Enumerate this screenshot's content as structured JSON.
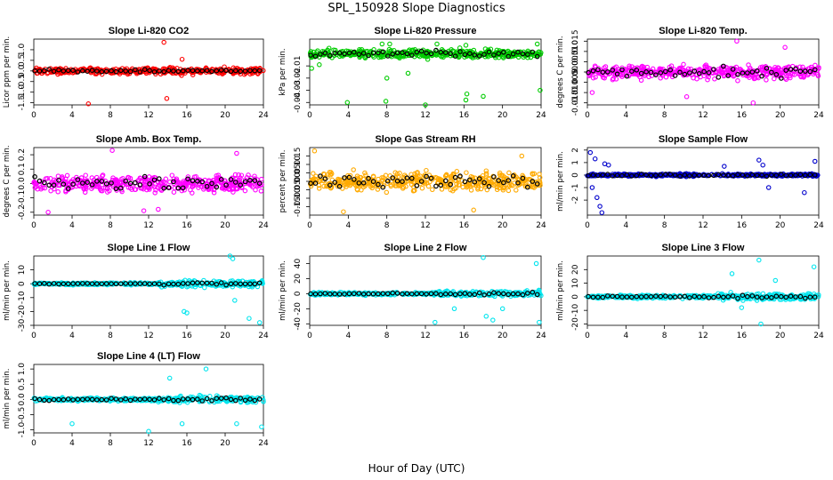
{
  "figure": {
    "title": "SPL_150928  Slope Diagnostics",
    "xlabel": "Hour of Day (UTC)"
  },
  "chart_data": [
    {
      "type": "scatter",
      "title": "Slope Li-820 CO2",
      "ylabel": "Licor ppm per min.",
      "color": "#ff0000",
      "xlim": [
        0,
        24
      ],
      "xticks": [
        0,
        4,
        8,
        12,
        16,
        20,
        24
      ],
      "ylim": [
        -1.6,
        1.5
      ],
      "yticks": [
        -1.5,
        -1.0,
        -0.5,
        0.0,
        0.5,
        1.0
      ],
      "ytick_labels": [
        "-1.5",
        "-1.0",
        "-0.5",
        "0.0",
        "0.5",
        "1.0"
      ],
      "spread": 0.18,
      "black_spread": 0.07,
      "outliers": [
        [
          13.6,
          1.35
        ],
        [
          13.9,
          -1.3
        ],
        [
          5.7,
          -1.55
        ],
        [
          15.5,
          0.55
        ]
      ]
    },
    {
      "type": "scatter",
      "title": "Slope Li-820 Pressure",
      "ylabel": "kPa per min.",
      "color": "#00cc00",
      "xlim": [
        0,
        24
      ],
      "xticks": [
        0,
        4,
        8,
        12,
        16,
        20,
        24
      ],
      "ylim": [
        -0.042,
        0.012
      ],
      "yticks": [
        -0.04,
        -0.03,
        -0.02,
        -0.01
      ],
      "ytick_labels": [
        "-0.04",
        "-0.03",
        "-0.02",
        "-0.01"
      ],
      "center": 0.0,
      "spread": 0.004,
      "black_spread": 0.003,
      "outliers": [
        [
          7.5,
          0.008
        ],
        [
          8.3,
          0.008
        ],
        [
          13.2,
          0.008
        ],
        [
          16.2,
          0.007
        ],
        [
          23.6,
          0.008
        ],
        [
          0.2,
          -0.012
        ],
        [
          1.0,
          -0.009
        ],
        [
          3.9,
          -0.04
        ],
        [
          7.9,
          -0.039
        ],
        [
          12.0,
          -0.042
        ],
        [
          16.2,
          -0.038
        ],
        [
          16.3,
          -0.033
        ],
        [
          18.0,
          -0.035
        ],
        [
          23.9,
          -0.03
        ],
        [
          8.0,
          -0.02
        ],
        [
          10.2,
          -0.016
        ]
      ]
    },
    {
      "type": "scatter",
      "title": "Slope Li-820 Temp.",
      "ylabel": "degrees C per min.",
      "color": "#ff00ff",
      "xlim": [
        0,
        24
      ],
      "xticks": [
        0,
        4,
        8,
        12,
        16,
        20,
        24
      ],
      "ylim": [
        -0.016,
        0.016
      ],
      "yticks": [
        -0.015,
        -0.01,
        -0.005,
        0.0,
        0.005,
        0.01,
        0.015
      ],
      "ytick_labels": [
        "-0.015",
        "-0.010",
        "-0.005",
        "0.000",
        "0.005",
        "0.010",
        "0.015"
      ],
      "spread": 0.004,
      "black_spread": 0.003,
      "outliers": [
        [
          15.5,
          0.015
        ],
        [
          17.2,
          -0.015
        ],
        [
          10.3,
          -0.012
        ],
        [
          20.5,
          0.012
        ],
        [
          0.5,
          -0.01
        ]
      ]
    },
    {
      "type": "scatter",
      "title": "Slope Amb. Box Temp.",
      "ylabel": "degrees C per min.",
      "color": "#ff00ff",
      "xlim": [
        0,
        24
      ],
      "xticks": [
        0,
        4,
        8,
        12,
        16,
        20,
        24
      ],
      "ylim": [
        -0.22,
        0.25
      ],
      "yticks": [
        -0.2,
        -0.1,
        0.0,
        0.1,
        0.2
      ],
      "ytick_labels": [
        "-0.2",
        "-0.1",
        "0.0",
        "0.1",
        "0.2"
      ],
      "spread": 0.07,
      "black_spread": 0.05,
      "outliers": [
        [
          8.2,
          0.23
        ],
        [
          1.5,
          -0.2
        ],
        [
          11.5,
          -0.19
        ],
        [
          21.2,
          0.21
        ],
        [
          13.0,
          -0.18
        ]
      ]
    },
    {
      "type": "scatter",
      "title": "Slope Gas Stream RH",
      "ylabel": "percent per min.",
      "color": "#ffaa00",
      "xlim": [
        0,
        24
      ],
      "xticks": [
        0,
        4,
        8,
        12,
        16,
        20,
        24
      ],
      "ylim": [
        -0.2,
        0.2
      ],
      "yticks": [
        -0.15,
        -0.1,
        -0.05,
        0.0,
        0.05,
        0.1,
        0.15
      ],
      "ytick_labels": [
        "-0.15",
        "-0.10",
        "-0.05",
        "0.00",
        "0.05",
        "0.10",
        "0.15"
      ],
      "spread": 0.07,
      "black_spread": 0.05,
      "outliers": [
        [
          0.5,
          0.18
        ],
        [
          3.5,
          -0.18
        ],
        [
          17.0,
          -0.17
        ],
        [
          22.0,
          0.15
        ]
      ]
    },
    {
      "type": "scatter",
      "title": "Slope Sample Flow",
      "ylabel": "ml/min per min.",
      "color": "#0000cc",
      "xlim": [
        0,
        24
      ],
      "xticks": [
        0,
        4,
        8,
        12,
        16,
        20,
        24
      ],
      "ylim": [
        -3.2,
        2.2
      ],
      "yticks": [
        -2,
        -1,
        0,
        1,
        2
      ],
      "ytick_labels": [
        "-2",
        "-1",
        "0",
        "1",
        "2"
      ],
      "spread": 0.12,
      "black_spread": 0.08,
      "outliers": [
        [
          0.3,
          1.8
        ],
        [
          0.8,
          1.3
        ],
        [
          1.0,
          -1.8
        ],
        [
          1.3,
          -2.5
        ],
        [
          1.5,
          -3.0
        ],
        [
          0.5,
          -1.0
        ],
        [
          1.8,
          0.9
        ],
        [
          2.2,
          0.8
        ],
        [
          17.8,
          1.2
        ],
        [
          18.2,
          0.8
        ],
        [
          23.6,
          1.1
        ],
        [
          22.5,
          -1.4
        ],
        [
          14.2,
          0.7
        ],
        [
          18.8,
          -1.0
        ]
      ]
    },
    {
      "type": "scatter",
      "title": "Slope Line 1 Flow",
      "ylabel": "ml/min per min.",
      "color": "#00e5ee",
      "xlim": [
        0,
        24
      ],
      "xticks": [
        0,
        4,
        8,
        12,
        16,
        20,
        24
      ],
      "ylim": [
        -30,
        20
      ],
      "yticks": [
        -30,
        -20,
        -10,
        0,
        10
      ],
      "ytick_labels": [
        "-30",
        "-20",
        "-10",
        "0",
        "10"
      ],
      "spread": 1.0,
      "black_spread": 0.3,
      "late_spread": 6,
      "outliers": [
        [
          15.7,
          -20
        ],
        [
          16.0,
          -21
        ],
        [
          20.5,
          20
        ],
        [
          20.8,
          18
        ],
        [
          22.5,
          -25
        ],
        [
          23.6,
          -28
        ],
        [
          21.0,
          -12
        ]
      ]
    },
    {
      "type": "scatter",
      "title": "Slope Line 2 Flow",
      "ylabel": "ml/min per min.",
      "color": "#00e5ee",
      "xlim": [
        0,
        24
      ],
      "xticks": [
        0,
        4,
        8,
        12,
        16,
        20,
        24
      ],
      "ylim": [
        -42,
        50
      ],
      "yticks": [
        -40,
        -20,
        0,
        20,
        40
      ],
      "ytick_labels": [
        "-40",
        "-20",
        "0",
        "20",
        "40"
      ],
      "spread": 2.0,
      "black_spread": 1.0,
      "late_spread": 10,
      "outliers": [
        [
          18.0,
          48
        ],
        [
          18.3,
          -30
        ],
        [
          19.0,
          -35
        ],
        [
          13.0,
          -38
        ],
        [
          15.0,
          -20
        ],
        [
          23.5,
          40
        ],
        [
          20.0,
          -20
        ],
        [
          23.8,
          -38
        ]
      ]
    },
    {
      "type": "scatter",
      "title": "Slope Line 3 Flow",
      "ylabel": "ml/min per min.",
      "color": "#00e5ee",
      "xlim": [
        0,
        24
      ],
      "xticks": [
        0,
        4,
        8,
        12,
        16,
        20,
        24
      ],
      "ylim": [
        -21,
        30
      ],
      "yticks": [
        -20,
        -10,
        0,
        10,
        20
      ],
      "ytick_labels": [
        "-20",
        "-10",
        "0",
        "10",
        "20"
      ],
      "spread": 1.5,
      "black_spread": 0.8,
      "late_spread": 6,
      "outliers": [
        [
          17.8,
          27
        ],
        [
          18.0,
          -20
        ],
        [
          23.5,
          22
        ],
        [
          16.0,
          -8
        ],
        [
          15.0,
          17
        ],
        [
          19.5,
          12
        ]
      ]
    },
    {
      "type": "scatter",
      "title": "Slope Line 4 (LT) Flow",
      "ylabel": "ml/min per min.",
      "color": "#00e5ee",
      "xlim": [
        0,
        24
      ],
      "xticks": [
        0,
        4,
        8,
        12,
        16,
        20,
        24
      ],
      "ylim": [
        -1.1,
        1.15
      ],
      "yticks": [
        -1.0,
        -0.5,
        0.0,
        0.5,
        1.0
      ],
      "ytick_labels": [
        "-1.0",
        "-0.5",
        "0.0",
        "0.5",
        "1.0"
      ],
      "spread": 0.06,
      "black_spread": 0.05,
      "late_spread": 0.3,
      "outliers": [
        [
          12.0,
          -1.05
        ],
        [
          4.0,
          -0.8
        ],
        [
          18.0,
          1.0
        ],
        [
          21.2,
          -0.8
        ],
        [
          23.8,
          -0.9
        ],
        [
          14.2,
          0.7
        ],
        [
          15.5,
          -0.8
        ]
      ]
    }
  ]
}
